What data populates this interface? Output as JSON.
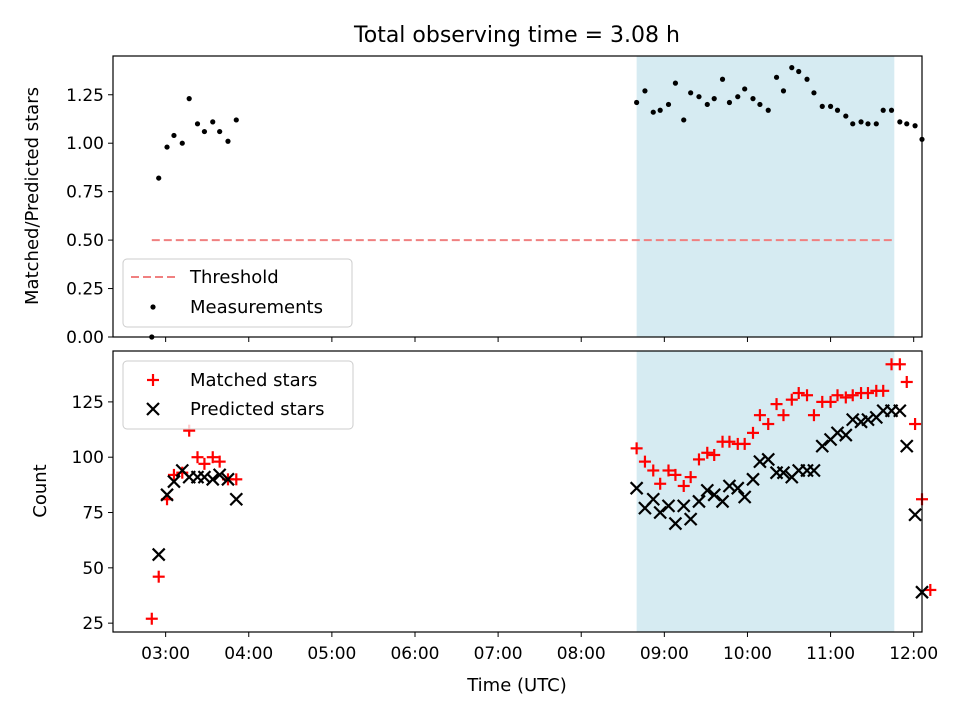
{
  "chart_data": [
    {
      "type": "scatter",
      "title": "Total observing time = 3.08 h",
      "ylabel": "Matched/Predicted stars",
      "xlabel": "",
      "xlim": [
        "02:22",
        "12:06"
      ],
      "ylim": [
        0,
        1.45
      ],
      "x_ticks": [
        "03:00",
        "04:00",
        "05:00",
        "06:00",
        "07:00",
        "08:00",
        "09:00",
        "10:00",
        "11:00",
        "12:00"
      ],
      "y_ticks": [
        "0.00",
        "0.25",
        "0.50",
        "0.75",
        "1.00",
        "1.25"
      ],
      "shaded_span": [
        "08:40",
        "11:46"
      ],
      "threshold": {
        "name": "Threshold",
        "y": 0.5,
        "x_range": [
          "02:50",
          "11:46"
        ],
        "color": "#f08080"
      },
      "legend": {
        "location": "lower left",
        "entries": [
          "Threshold",
          "Measurements"
        ]
      },
      "series": [
        {
          "name": "Measurements",
          "marker": "dot",
          "color": "#000000",
          "points": [
            [
              "02:50",
              0.0
            ],
            [
              "02:55",
              0.82
            ],
            [
              "03:01",
              0.98
            ],
            [
              "03:06",
              1.04
            ],
            [
              "03:12",
              1.0
            ],
            [
              "03:17",
              1.23
            ],
            [
              "03:23",
              1.1
            ],
            [
              "03:28",
              1.06
            ],
            [
              "03:34",
              1.11
            ],
            [
              "03:39",
              1.06
            ],
            [
              "03:45",
              1.01
            ],
            [
              "03:51",
              1.12
            ],
            [
              "08:40",
              1.21
            ],
            [
              "08:46",
              1.27
            ],
            [
              "08:52",
              1.16
            ],
            [
              "08:57",
              1.17
            ],
            [
              "09:03",
              1.2
            ],
            [
              "09:08",
              1.31
            ],
            [
              "09:14",
              1.12
            ],
            [
              "09:19",
              1.26
            ],
            [
              "09:25",
              1.24
            ],
            [
              "09:31",
              1.2
            ],
            [
              "09:36",
              1.23
            ],
            [
              "09:42",
              1.33
            ],
            [
              "09:47",
              1.21
            ],
            [
              "09:53",
              1.24
            ],
            [
              "09:58",
              1.28
            ],
            [
              "10:04",
              1.23
            ],
            [
              "10:09",
              1.2
            ],
            [
              "10:15",
              1.17
            ],
            [
              "10:21",
              1.34
            ],
            [
              "10:26",
              1.27
            ],
            [
              "10:32",
              1.39
            ],
            [
              "10:37",
              1.37
            ],
            [
              "10:43",
              1.33
            ],
            [
              "10:48",
              1.26
            ],
            [
              "10:54",
              1.19
            ],
            [
              "11:00",
              1.19
            ],
            [
              "11:05",
              1.17
            ],
            [
              "11:11",
              1.14
            ],
            [
              "11:16",
              1.1
            ],
            [
              "11:22",
              1.11
            ],
            [
              "11:27",
              1.1
            ],
            [
              "11:33",
              1.1
            ],
            [
              "11:38",
              1.17
            ],
            [
              "11:44",
              1.17
            ],
            [
              "11:50",
              1.11
            ],
            [
              "11:55",
              1.1
            ],
            [
              "12:01",
              1.09
            ],
            [
              "12:06",
              1.02
            ]
          ]
        }
      ]
    },
    {
      "type": "scatter",
      "title": "",
      "ylabel": "Count",
      "xlabel": "Time (UTC)",
      "xlim": [
        "02:22",
        "12:06"
      ],
      "ylim": [
        21,
        148
      ],
      "x_ticks": [
        "03:00",
        "04:00",
        "05:00",
        "06:00",
        "07:00",
        "08:00",
        "09:00",
        "10:00",
        "11:00",
        "12:00"
      ],
      "y_ticks": [
        "25",
        "50",
        "75",
        "100",
        "125"
      ],
      "shaded_span": [
        "08:40",
        "11:46"
      ],
      "legend": {
        "location": "upper left",
        "entries": [
          "Matched stars",
          "Predicted stars"
        ]
      },
      "series": [
        {
          "name": "Matched stars",
          "marker": "plus",
          "color": "#ff0000",
          "points": [
            [
              "02:50",
              27
            ],
            [
              "02:55",
              46
            ],
            [
              "03:01",
              81
            ],
            [
              "03:06",
              92
            ],
            [
              "03:12",
              93
            ],
            [
              "03:17",
              112
            ],
            [
              "03:23",
              100
            ],
            [
              "03:28",
              97
            ],
            [
              "03:34",
              100
            ],
            [
              "03:39",
              98
            ],
            [
              "03:45",
              90
            ],
            [
              "03:51",
              90
            ],
            [
              "08:40",
              104
            ],
            [
              "08:46",
              98
            ],
            [
              "08:52",
              94
            ],
            [
              "08:57",
              88
            ],
            [
              "09:03",
              94
            ],
            [
              "09:08",
              92
            ],
            [
              "09:14",
              87
            ],
            [
              "09:19",
              91
            ],
            [
              "09:25",
              99
            ],
            [
              "09:31",
              102
            ],
            [
              "09:36",
              101
            ],
            [
              "09:42",
              107
            ],
            [
              "09:47",
              107
            ],
            [
              "09:53",
              106
            ],
            [
              "09:58",
              106
            ],
            [
              "10:04",
              111
            ],
            [
              "10:09",
              119
            ],
            [
              "10:15",
              115
            ],
            [
              "10:21",
              124
            ],
            [
              "10:26",
              119
            ],
            [
              "10:32",
              126
            ],
            [
              "10:37",
              129
            ],
            [
              "10:43",
              128
            ],
            [
              "10:48",
              119
            ],
            [
              "10:54",
              125
            ],
            [
              "11:00",
              125
            ],
            [
              "11:05",
              128
            ],
            [
              "11:11",
              127
            ],
            [
              "11:16",
              128
            ],
            [
              "11:22",
              129
            ],
            [
              "11:27",
              129
            ],
            [
              "11:33",
              130
            ],
            [
              "11:38",
              130
            ],
            [
              "11:44",
              142
            ],
            [
              "11:50",
              142
            ],
            [
              "11:55",
              134
            ],
            [
              "12:01",
              115
            ],
            [
              "12:06",
              81
            ],
            [
              "12:12",
              40
            ]
          ]
        },
        {
          "name": "Predicted stars",
          "marker": "cross",
          "color": "#000000",
          "points": [
            [
              "02:55",
              56
            ],
            [
              "03:01",
              83
            ],
            [
              "03:06",
              89
            ],
            [
              "03:12",
              94
            ],
            [
              "03:17",
              91
            ],
            [
              "03:23",
              91
            ],
            [
              "03:28",
              91
            ],
            [
              "03:34",
              90
            ],
            [
              "03:39",
              92
            ],
            [
              "03:45",
              90
            ],
            [
              "03:51",
              81
            ],
            [
              "08:40",
              86
            ],
            [
              "08:46",
              77
            ],
            [
              "08:52",
              81
            ],
            [
              "08:57",
              75
            ],
            [
              "09:03",
              78
            ],
            [
              "09:08",
              70
            ],
            [
              "09:14",
              78
            ],
            [
              "09:19",
              72
            ],
            [
              "09:25",
              80
            ],
            [
              "09:31",
              85
            ],
            [
              "09:36",
              83
            ],
            [
              "09:42",
              80
            ],
            [
              "09:47",
              87
            ],
            [
              "09:53",
              86
            ],
            [
              "09:58",
              82
            ],
            [
              "10:04",
              90
            ],
            [
              "10:09",
              98
            ],
            [
              "10:15",
              99
            ],
            [
              "10:21",
              93
            ],
            [
              "10:26",
              93
            ],
            [
              "10:32",
              91
            ],
            [
              "10:37",
              94
            ],
            [
              "10:43",
              94
            ],
            [
              "10:48",
              94
            ],
            [
              "10:54",
              105
            ],
            [
              "11:00",
              108
            ],
            [
              "11:05",
              111
            ],
            [
              "11:11",
              110
            ],
            [
              "11:16",
              117
            ],
            [
              "11:22",
              116
            ],
            [
              "11:27",
              117
            ],
            [
              "11:33",
              118
            ],
            [
              "11:38",
              121
            ],
            [
              "11:44",
              121
            ],
            [
              "11:50",
              121
            ],
            [
              "11:55",
              105
            ],
            [
              "12:01",
              74
            ],
            [
              "12:06",
              39
            ]
          ]
        }
      ]
    }
  ]
}
